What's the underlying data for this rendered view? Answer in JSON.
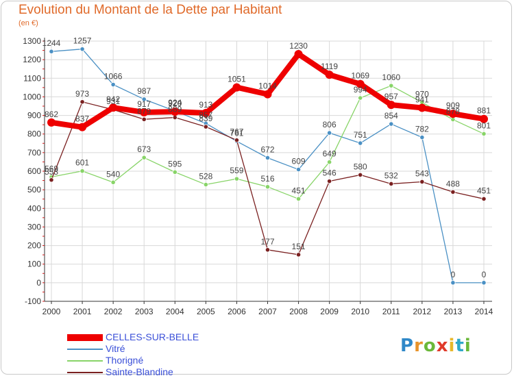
{
  "title": "Evolution du Montant de la Dette par Habitant",
  "subtitle": "(en €)",
  "logo": {
    "letters": [
      {
        "ch": "P",
        "color": "#2f88c8"
      },
      {
        "ch": "r",
        "color": "#e8932a"
      },
      {
        "ch": "o",
        "color": "#6bb83a"
      },
      {
        "ch": "x",
        "color": "#e03a2a"
      },
      {
        "ch": "i",
        "color": "#e8b82a"
      },
      {
        "ch": "t",
        "color": "#2fa8c8"
      },
      {
        "ch": "i",
        "color": "#6bb83a"
      }
    ]
  },
  "chart_data": {
    "type": "line",
    "x": [
      "2000",
      "2001",
      "2002",
      "2003",
      "2004",
      "2005",
      "2006",
      "2007",
      "2008",
      "2009",
      "2010",
      "2011",
      "2012",
      "2013",
      "2014"
    ],
    "ylim": [
      -100,
      1300
    ],
    "yticks": [
      -100,
      0,
      100,
      200,
      300,
      400,
      500,
      600,
      700,
      800,
      900,
      1000,
      1100,
      1200,
      1300
    ],
    "grid": true,
    "legend_position": "bottom-left",
    "series": [
      {
        "name": "CELLES-SUR-BELLE",
        "color": "#ee0000",
        "values": [
          862,
          837,
          942,
          917,
          920,
          913,
          1051,
          1014,
          1230,
          1119,
          1069,
          957,
          941,
          909,
          881
        ]
      },
      {
        "name": "Vitré",
        "color": "#4a90c4",
        "values": [
          1244,
          1257,
          1066,
          987,
          924,
          857,
          761,
          672,
          609,
          806,
          751,
          854,
          782,
          0,
          0
        ]
      },
      {
        "name": "Thorigné",
        "color": "#88d468",
        "values": [
          569,
          601,
          540,
          673,
          595,
          528,
          559,
          516,
          451,
          649,
          994,
          1060,
          970,
          878,
          801
        ]
      },
      {
        "name": "Sainte-Blandine",
        "color": "#7a2020",
        "values": [
          553,
          973,
          931,
          879,
          889,
          839,
          767,
          177,
          151,
          546,
          580,
          532,
          543,
          488,
          451
        ]
      }
    ]
  }
}
